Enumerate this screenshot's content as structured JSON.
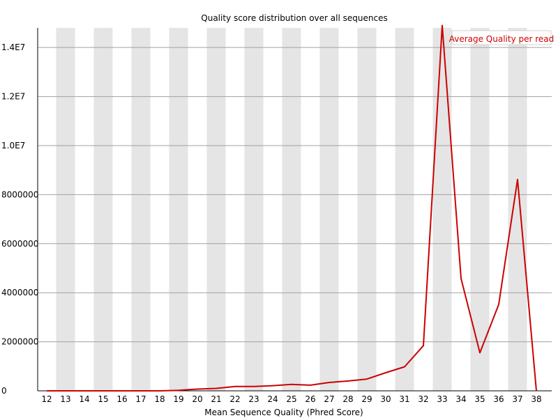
{
  "chart_data": {
    "type": "line",
    "title": "Quality score distribution over all sequences",
    "xlabel": "Mean Sequence Quality (Phred Score)",
    "ylabel": "",
    "x": [
      12,
      13,
      14,
      15,
      16,
      17,
      18,
      19,
      20,
      21,
      22,
      23,
      24,
      25,
      26,
      27,
      28,
      29,
      30,
      31,
      32,
      33,
      34,
      35,
      36,
      37,
      38
    ],
    "ylim": [
      0,
      14800000
    ],
    "y_ticks": [
      0,
      2000000,
      4000000,
      6000000,
      8000000,
      10000000,
      12000000,
      14000000
    ],
    "y_tick_labels": [
      "0",
      "2000000",
      "4000000",
      "6000000",
      "8000000",
      "1.0E7",
      "1.2E7",
      "1.4E7"
    ],
    "series": [
      {
        "name": "Average Quality per read",
        "color": "#cc0000",
        "values": [
          0,
          0,
          0,
          0,
          0,
          0,
          0,
          20000,
          70000,
          100000,
          180000,
          180000,
          210000,
          260000,
          230000,
          340000,
          400000,
          480000,
          740000,
          980000,
          1840000,
          14900000,
          4580000,
          1550000,
          3520000,
          8620000,
          0
        ]
      }
    ],
    "grid": true,
    "band_color": "#e5e5e5",
    "legend_position": "top-right"
  }
}
